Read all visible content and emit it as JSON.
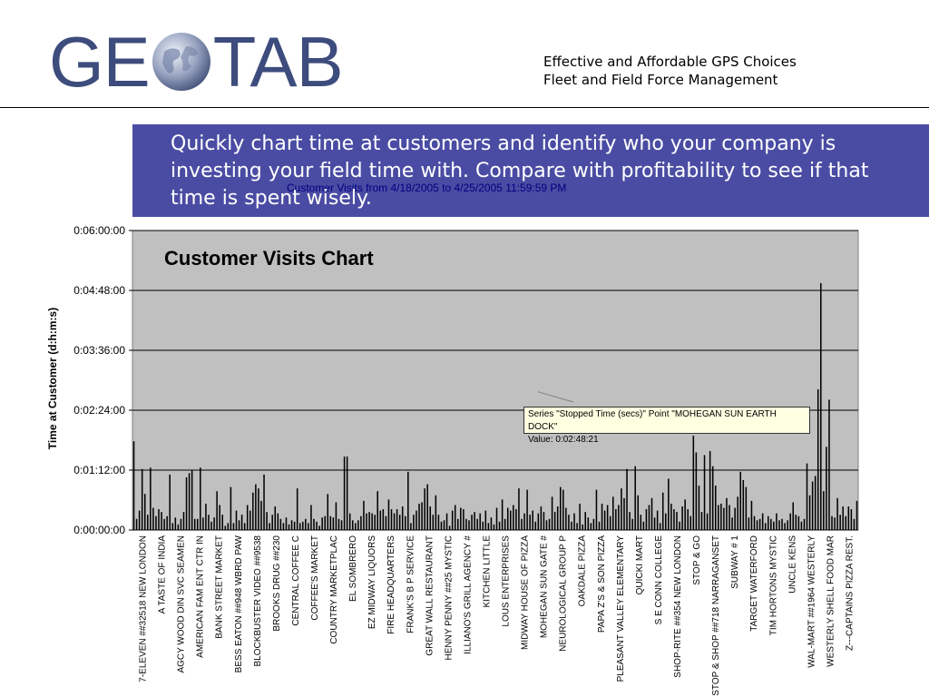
{
  "header": {
    "logo_left": "GE",
    "logo_right": "TAB",
    "tagline_line1": "Effective and Affordable GPS Choices",
    "tagline_line2": "Fleet and Field Force Management"
  },
  "callout": {
    "text": "Quickly chart time at customers and identify who your company is investing your field time with. Compare with profitability to see if that time is spent wisely."
  },
  "overlay_title": "Customer Visits Chart",
  "tooltip": {
    "line1": "Series \"Stopped Time (secs)\" Point \"MOHEGAN SUN EARTH DOCK\"",
    "line2": "Value: 0:02:48:21"
  },
  "colors": {
    "brand": "#3d4c7c",
    "callout_bg": "#4a4ca3",
    "plot_bg": "#c0c0c0",
    "bars": "#000000"
  },
  "chart_data": {
    "type": "bar",
    "title": "Customer Visits from 4/18/2005 to 4/25/2005 11:59:59 PM",
    "ylabel": "Time at Customer (d:h:m:s)",
    "yticks": [
      "0:00:00:00",
      "0:01:12:00",
      "0:02:24:00",
      "0:03:36:00",
      "0:04:48:00",
      "0:06:00:00"
    ],
    "ylim_seconds": [
      0,
      21600
    ],
    "grid": true,
    "series_name": "Stopped Time (secs)",
    "category_labels": [
      "7-ELEVEN ##32518 NEW LONDON",
      "A TASTE OF INDIA",
      "AGCY WOOD DIN SVC SEAMEN",
      "AMERICAN FAM ENT CTR IN",
      "BANK STREET MARKET",
      "BESS EATON ##948 WBRD PAW",
      "BLOCKBUSTER VIDEO ##9538",
      "BROOKS DRUG ##230",
      "CENTRAL COFFEE C",
      "COFFEE'S MARKET",
      "COUNTRY MARKETPLAC",
      "EL SOMBRERO",
      "EZ MIDWAY LIQUORS",
      "FIRE HEADQUARTERS",
      "FRANK'S B P SERVICE",
      "GREAT WALL RESTAURANT",
      "HENNY PENNY ##25 MYSTIC",
      "ILLIANO'S GRILL AGENCY #",
      "KITCHEN LITTLE",
      "LOUS ENTERPRISES",
      "MIDWAY HOUSE OF PIZZA",
      "MOHEGAN SUN GATE #",
      "NEUROLOGICAL GROUP P",
      "OAKDALE PIZZA",
      "PAPA Z'S & SON PIZZA",
      "PLEASANT VALLEY ELEMENTARY",
      "QUICKI MART",
      "S E CONN COLLEGE",
      "SHOP-RITE ##354 NEW LONDON",
      "STOP & GO",
      "STOP & SHOP ##718 NARRAGANSET",
      "SUBWAY # 1",
      "TARGET WATERFORD",
      "TIM HORTONS MYSTIC",
      "UNCLE KENS",
      "WAL-MART ##1964 WESTERLY",
      "WESTERLY SHELL FOOD MAR",
      "Z---CAPTAINS PIZZA REST."
    ],
    "values_seconds": [
      6400,
      800,
      1400,
      4400,
      2600,
      1100,
      4500,
      1600,
      1000,
      1500,
      1300,
      800,
      1000,
      4000,
      500,
      900,
      400,
      800,
      1300,
      3800,
      4100,
      4300,
      800,
      800,
      4500,
      900,
      1900,
      1100,
      600,
      900,
      2800,
      1800,
      1100,
      300,
      500,
      3100,
      500,
      1400,
      700,
      1100,
      500,
      1800,
      1400,
      2700,
      3300,
      3000,
      2100,
      4000,
      1300,
      500,
      1100,
      1700,
      1200,
      800,
      500,
      900,
      400,
      700,
      600,
      3000,
      500,
      600,
      800,
      500,
      1800,
      800,
      600,
      300,
      900,
      1000,
      2600,
      1000,
      900,
      2000,
      800,
      700,
      5300,
      5300,
      1200,
      700,
      500,
      700,
      1000,
      2100,
      1200,
      1300,
      1200,
      1100,
      2800,
      1400,
      1500,
      1000,
      2200,
      1500,
      1200,
      1500,
      1100,
      1700,
      1000,
      4200,
      500,
      1100,
      1400,
      1900,
      2000,
      3000,
      3300,
      1700,
      1100,
      2500,
      1100,
      600,
      700,
      1200,
      300,
      1400,
      1800,
      800,
      1600,
      1500,
      800,
      700,
      1100,
      1300,
      800,
      1200,
      600,
      1400,
      500,
      900,
      400,
      1600,
      600,
      2200,
      800,
      1600,
      1400,
      1800,
      1500,
      3000,
      800,
      1200,
      2900,
      1100,
      1400,
      600,
      1200,
      1700,
      1300,
      700,
      800,
      2400,
      1300,
      1700,
      3100,
      2900,
      1600,
      1100,
      600,
      1200,
      500,
      1900,
      400,
      1300,
      900,
      500,
      800,
      2900,
      600,
      1900,
      1400,
      1800,
      1000,
      2400,
      1500,
      1800,
      3000,
      2300,
      4400,
      1300,
      800,
      4600,
      2500,
      1100,
      600,
      1500,
      1800,
      2300,
      900,
      1400,
      500,
      2700,
      1200,
      3700,
      1900,
      1500,
      1300,
      600,
      1700,
      2200,
      1500,
      1000,
      6800,
      5600,
      3200,
      1300,
      5400,
      1200,
      5700,
      4600,
      3200,
      1800,
      1900,
      1600,
      2300,
      1800,
      900,
      1600,
      2400,
      4200,
      3600,
      3100,
      900,
      2100,
      1000,
      700,
      800,
      1200,
      500,
      1000,
      800,
      600,
      1200,
      700,
      800,
      500,
      700,
      1200,
      2000,
      1100,
      1000,
      600,
      800,
      4800,
      2500,
      3500,
      3900,
      10152,
      17808,
      2800,
      6000,
      9400,
      1000,
      900,
      2300,
      1100,
      1700,
      1000,
      1700,
      1500,
      800,
      2100
    ],
    "annotated_point": {
      "label": "MOHEGAN SUN EARTH DOCK",
      "value_seconds": 10101
    }
  }
}
